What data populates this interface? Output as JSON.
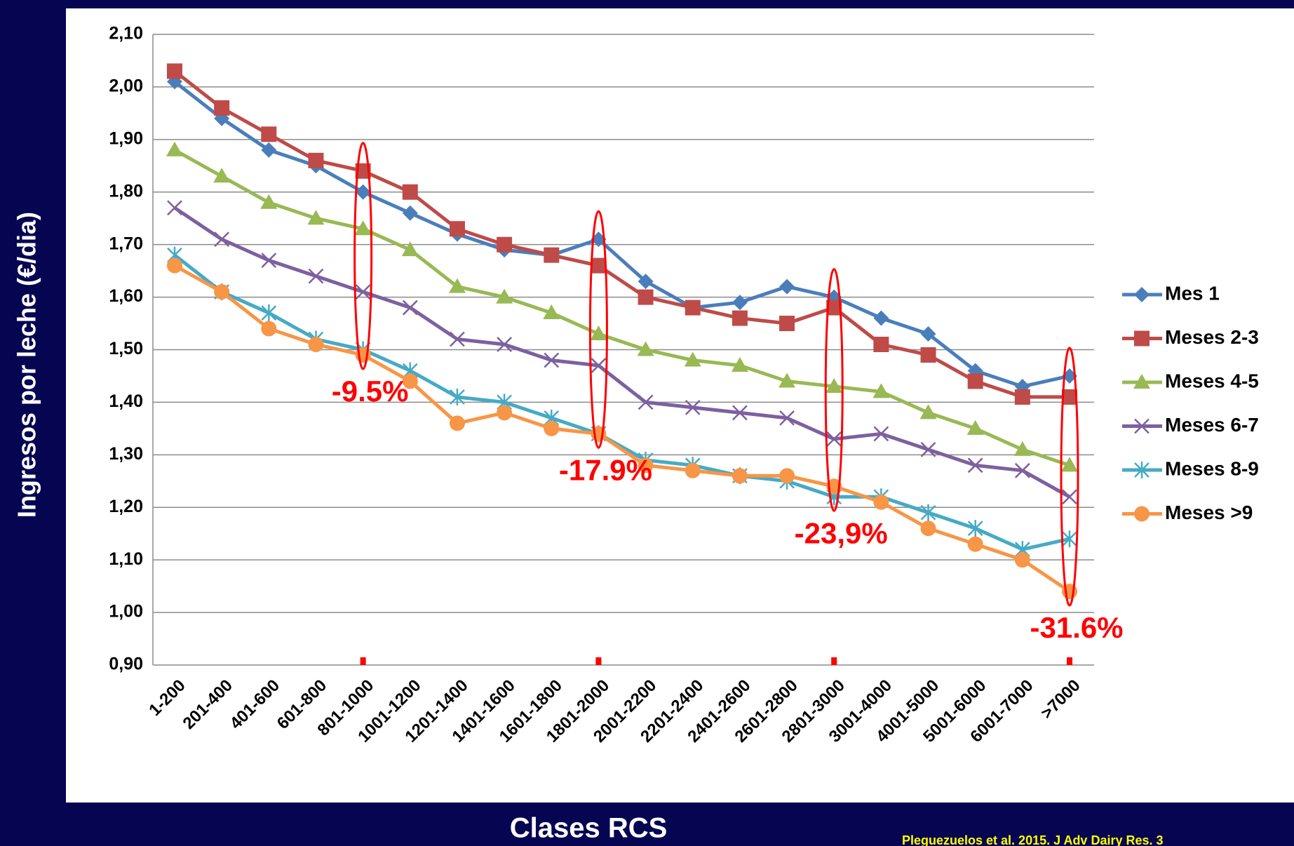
{
  "chart_data": {
    "type": "line",
    "y_label": "Ingresos por leche (€/dia)",
    "x_label": "Clases RCS",
    "source": "Pleguezuelos et al. 2015. J Adv Dairy Res. 3",
    "categories": [
      "1-200",
      "201-400",
      "401-600",
      "601-800",
      "801-1000",
      "1001-1200",
      "1201-1400",
      "1401-1600",
      "1601-1800",
      "1801-2000",
      "2001-2200",
      "2201-2400",
      "2401-2600",
      "2601-2800",
      "2801-3000",
      "3001-4000",
      "4001-5000",
      "5001-6000",
      "6001-7000",
      ">7000"
    ],
    "ylim": [
      0.9,
      2.1
    ],
    "yticks": [
      {
        "value": 0.9,
        "label": "0,90"
      },
      {
        "value": 1.0,
        "label": "1,00"
      },
      {
        "value": 1.1,
        "label": "1,10"
      },
      {
        "value": 1.2,
        "label": "1,20"
      },
      {
        "value": 1.3,
        "label": "1,30"
      },
      {
        "value": 1.4,
        "label": "1,40"
      },
      {
        "value": 1.5,
        "label": "1,50"
      },
      {
        "value": 1.6,
        "label": "1,60"
      },
      {
        "value": 1.7,
        "label": "1,70"
      },
      {
        "value": 1.8,
        "label": "1,80"
      },
      {
        "value": 1.9,
        "label": "1,90"
      },
      {
        "value": 2.0,
        "label": "2,00"
      },
      {
        "value": 2.1,
        "label": "2,10"
      }
    ],
    "grid": true,
    "legend": "right",
    "series": [
      {
        "name": "Mes 1",
        "color": "#4a7ebb",
        "marker": "diamond",
        "values": [
          2.01,
          1.94,
          1.88,
          1.85,
          1.8,
          1.76,
          1.72,
          1.69,
          1.68,
          1.71,
          1.63,
          1.58,
          1.59,
          1.62,
          1.6,
          1.56,
          1.53,
          1.46,
          1.43,
          1.45
        ]
      },
      {
        "name": "Meses 2-3",
        "color": "#be4b48",
        "marker": "square",
        "values": [
          2.03,
          1.96,
          1.91,
          1.86,
          1.84,
          1.8,
          1.73,
          1.7,
          1.68,
          1.66,
          1.6,
          1.58,
          1.56,
          1.55,
          1.58,
          1.51,
          1.49,
          1.44,
          1.41,
          1.41
        ]
      },
      {
        "name": "Meses 4-5",
        "color": "#98b954",
        "marker": "triangle",
        "values": [
          1.88,
          1.83,
          1.78,
          1.75,
          1.73,
          1.69,
          1.62,
          1.6,
          1.57,
          1.53,
          1.5,
          1.48,
          1.47,
          1.44,
          1.43,
          1.42,
          1.38,
          1.35,
          1.31,
          1.28
        ]
      },
      {
        "name": "Meses 6-7",
        "color": "#7d60a0",
        "marker": "x",
        "values": [
          1.77,
          1.71,
          1.67,
          1.64,
          1.61,
          1.58,
          1.52,
          1.51,
          1.48,
          1.47,
          1.4,
          1.39,
          1.38,
          1.37,
          1.33,
          1.34,
          1.31,
          1.28,
          1.27,
          1.22
        ]
      },
      {
        "name": "Meses 8-9",
        "color": "#46aac5",
        "marker": "star",
        "values": [
          1.68,
          1.61,
          1.57,
          1.52,
          1.5,
          1.46,
          1.41,
          1.4,
          1.37,
          1.34,
          1.29,
          1.28,
          1.26,
          1.25,
          1.22,
          1.22,
          1.19,
          1.16,
          1.12,
          1.14
        ]
      },
      {
        "name": "Meses >9",
        "color": "#f79646",
        "marker": "circle",
        "values": [
          1.66,
          1.61,
          1.54,
          1.51,
          1.49,
          1.44,
          1.36,
          1.38,
          1.35,
          1.34,
          1.28,
          1.27,
          1.26,
          1.26,
          1.24,
          1.21,
          1.16,
          1.13,
          1.1,
          1.04
        ]
      }
    ],
    "annotations": [
      {
        "label": "-9.5%",
        "at": "801-1000"
      },
      {
        "label": "-17.9%",
        "at": "1801-2000"
      },
      {
        "label": "-23,9%",
        "at": "2801-3000"
      },
      {
        "label": "-31.6%",
        "at": ">7000"
      }
    ],
    "annotation_color": "#ff0000"
  }
}
